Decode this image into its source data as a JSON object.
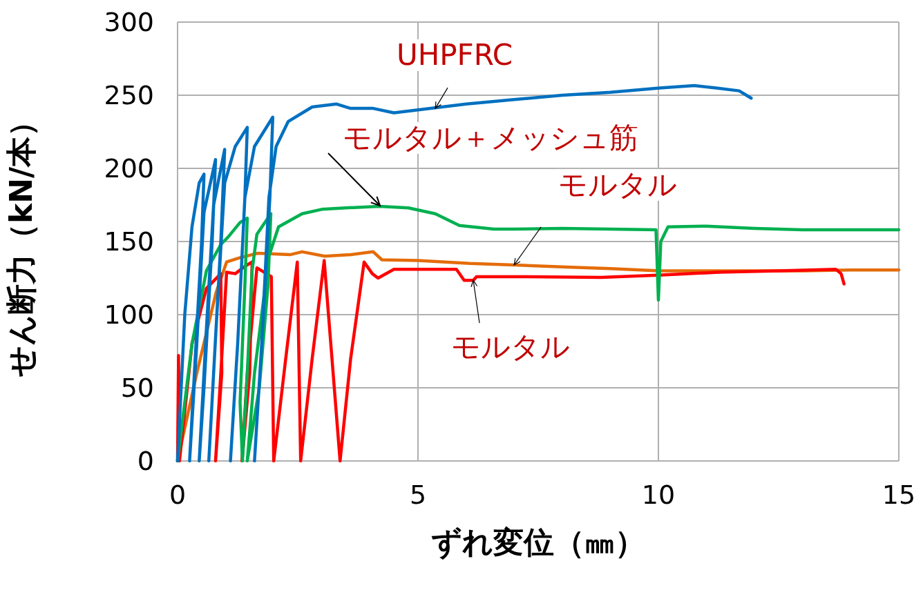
{
  "chart_data": {
    "type": "line",
    "xlabel": "ずれ変位（㎜）",
    "ylabel": "せん断力（kN/本）",
    "xlim": [
      0,
      15
    ],
    "xticks": [
      0,
      5,
      10,
      15
    ],
    "ylim": [
      0,
      300
    ],
    "yticks": [
      0,
      50,
      100,
      150,
      200,
      250,
      300
    ],
    "grid": true,
    "marker": "none",
    "line_style": "solid",
    "series": [
      {
        "color": "#e46c0a",
        "x": [
          0,
          0.4,
          0.8,
          1.02,
          1.3,
          1.67,
          2.34,
          2.59,
          3.06,
          3.6,
          4.07,
          4.25,
          5,
          6.08,
          7,
          8.09,
          9,
          10.03,
          11,
          12,
          13,
          14,
          15
        ],
        "values": [
          0,
          60,
          115,
          136,
          139,
          142,
          141,
          143,
          140,
          141,
          143,
          137.5,
          137,
          135,
          134,
          132.5,
          131.5,
          130,
          130,
          130,
          130,
          130.5,
          130.5
        ]
      },
      {
        "color": "#ff0000",
        "x": [
          0,
          0.02,
          0.04,
          0.3,
          0.6,
          0.9,
          0.92,
          0.79,
          0.9,
          1.02,
          1.2,
          1.4,
          1.55,
          1.5,
          1.34,
          1.45,
          1.65,
          1.95,
          2.0,
          2.25,
          2.49,
          2.56,
          2.8,
          3.05,
          3.38,
          3.6,
          3.88,
          4.05,
          4.17,
          4.5,
          4.8,
          5.8,
          5.96,
          6.15,
          6.22,
          7,
          8.8,
          10,
          11.25,
          12.5,
          13.69,
          13.8,
          13.86
        ],
        "values": [
          0,
          72,
          0,
          80,
          118,
          128,
          60,
          0,
          60,
          129,
          128,
          133,
          136,
          60,
          0,
          60,
          132,
          126,
          0,
          70,
          136,
          0,
          70,
          137,
          0,
          70,
          136,
          128,
          125,
          131,
          131,
          131,
          123.5,
          123.5,
          126,
          126,
          125.5,
          127,
          129,
          130,
          131,
          128,
          121
        ]
      },
      {
        "color": "#00b050",
        "x": [
          0,
          0.3,
          0.6,
          0.9,
          1.05,
          1.3,
          1.45,
          1.4,
          1.3,
          1.35,
          1.45,
          1.55,
          1.65,
          1.94,
          1.88,
          1.7,
          1.45,
          1.6,
          1.9,
          2.1,
          2.59,
          3.0,
          3.5,
          4.2,
          4.8,
          5.36,
          5.86,
          6.58,
          7,
          8,
          9,
          9.95,
          10.0,
          10.05,
          10.2,
          11,
          12,
          13,
          14,
          15
        ],
        "values": [
          0,
          80,
          130,
          148,
          153,
          163,
          166,
          120,
          40,
          0,
          60,
          130,
          155,
          169,
          120,
          50,
          0,
          60,
          140,
          160,
          169,
          172,
          173,
          174,
          173,
          169,
          161,
          158.5,
          158.5,
          159,
          158.5,
          158,
          110,
          150,
          160,
          160.5,
          159,
          158,
          158,
          158
        ]
      },
      {
        "color": "#0070c0",
        "x": [
          0,
          0.15,
          0.3,
          0.45,
          0.55,
          0.5,
          0.35,
          0.25,
          0.4,
          0.55,
          0.79,
          0.72,
          0.55,
          0.45,
          0.6,
          0.75,
          0.98,
          0.9,
          0.75,
          0.65,
          0.8,
          0.98,
          1.2,
          1.45,
          1.4,
          1.25,
          1.1,
          1.25,
          1.4,
          1.6,
          1.98,
          1.92,
          1.75,
          1.6,
          1.75,
          1.9,
          2.05,
          2.3,
          2.8,
          3.3,
          3.6,
          4.07,
          4.5,
          5,
          6,
          7,
          8,
          9,
          10.03,
          10.75,
          11.2,
          11.68,
          11.93
        ],
        "values": [
          0,
          100,
          160,
          190,
          196,
          150,
          60,
          0,
          80,
          170,
          206,
          150,
          50,
          0,
          90,
          175,
          213,
          150,
          60,
          0,
          90,
          190,
          215,
          228,
          180,
          80,
          0,
          80,
          180,
          215,
          235,
          180,
          80,
          0,
          80,
          180,
          215,
          232,
          242,
          244,
          241,
          241,
          238,
          240,
          244,
          247,
          250,
          252,
          255,
          256.6,
          255,
          253,
          248
        ]
      }
    ],
    "annotations": [
      {
        "text": "UHPFRC",
        "x": 5.36,
        "y": 241
      },
      {
        "text": "モルタル＋メッシュ筋",
        "x": 4.21,
        "y": 174.5
      },
      {
        "text": "モルタル",
        "x": 7,
        "y": 134
      },
      {
        "text": "モルタル",
        "x": 6.15,
        "y": 123.5
      }
    ]
  }
}
